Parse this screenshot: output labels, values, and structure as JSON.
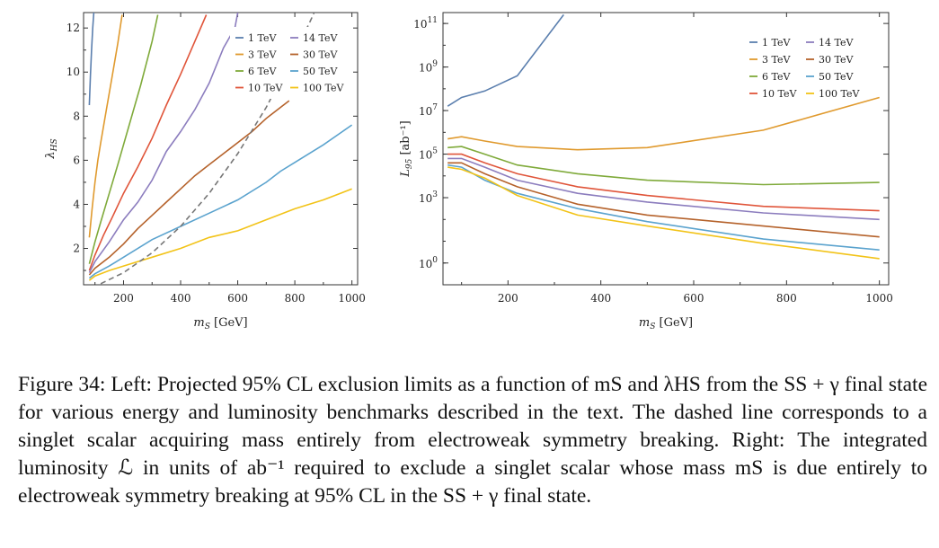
{
  "colors": {
    "1 TeV": "#5B7FAE",
    "3 TeV": "#E09A2E",
    "6 TeV": "#7FAA3A",
    "10 TeV": "#E0553A",
    "14 TeV": "#8C7DBE",
    "30 TeV": "#B5622B",
    "50 TeV": "#5BA3CE",
    "100 TeV": "#F2C318",
    "ewsb": "#777777"
  },
  "chart_data": [
    {
      "type": "line",
      "xlabel": "m_S [GeV]",
      "ylabel": "λ_HS",
      "xlim": [
        60,
        1020
      ],
      "ylim": [
        0.35,
        12.7
      ],
      "xticks": [
        200,
        400,
        600,
        800,
        1000
      ],
      "yticks": [
        2,
        4,
        6,
        8,
        10,
        12
      ],
      "grid": false,
      "legend_placement": "top-right",
      "legend": [
        "1 TeV",
        "3 TeV",
        "6 TeV",
        "10 TeV",
        "14 TeV",
        "30 TeV",
        "50 TeV",
        "100 TeV"
      ],
      "series": [
        {
          "name": "1 TeV",
          "x": [
            80,
            84,
            88,
            92,
            96
          ],
          "y": [
            8.5,
            9.8,
            11.0,
            12.0,
            12.7
          ]
        },
        {
          "name": "3 TeV",
          "x": [
            80,
            90,
            100,
            110,
            120,
            140,
            160,
            180,
            195
          ],
          "y": [
            2.5,
            3.8,
            5.0,
            6.0,
            6.8,
            8.3,
            9.8,
            11.3,
            12.6
          ]
        },
        {
          "name": "6 TeV",
          "x": [
            80,
            100,
            120,
            150,
            180,
            220,
            260,
            300,
            320
          ],
          "y": [
            1.3,
            2.3,
            3.2,
            4.5,
            5.8,
            7.6,
            9.4,
            11.4,
            12.6
          ]
        },
        {
          "name": "10 TeV",
          "x": [
            80,
            100,
            130,
            160,
            200,
            250,
            300,
            350,
            400,
            450,
            490
          ],
          "y": [
            1.0,
            1.7,
            2.6,
            3.4,
            4.5,
            5.7,
            7.0,
            8.5,
            9.9,
            11.4,
            12.6
          ]
        },
        {
          "name": "14 TeV",
          "x": [
            80,
            100,
            150,
            200,
            250,
            300,
            350,
            400,
            450,
            500,
            550,
            590,
            600
          ],
          "y": [
            0.9,
            1.4,
            2.3,
            3.3,
            4.1,
            5.1,
            6.4,
            7.3,
            8.3,
            9.5,
            11.1,
            12.0,
            12.7
          ]
        },
        {
          "name": "30 TeV",
          "x": [
            80,
            100,
            150,
            200,
            250,
            300,
            350,
            400,
            450,
            500,
            550,
            600,
            650,
            700,
            750,
            780
          ],
          "y": [
            0.8,
            1.1,
            1.6,
            2.2,
            2.9,
            3.5,
            4.1,
            4.7,
            5.3,
            5.8,
            6.3,
            6.8,
            7.3,
            7.9,
            8.4,
            8.7
          ]
        },
        {
          "name": "50 TeV",
          "x": [
            80,
            100,
            150,
            200,
            300,
            400,
            500,
            600,
            700,
            750,
            800,
            900,
            1000
          ],
          "y": [
            0.65,
            0.85,
            1.2,
            1.6,
            2.4,
            3.0,
            3.6,
            4.2,
            5.0,
            5.5,
            5.9,
            6.7,
            7.6
          ]
        },
        {
          "name": "100 TeV",
          "x": [
            80,
            100,
            150,
            200,
            300,
            400,
            500,
            600,
            700,
            800,
            900,
            1000
          ],
          "y": [
            0.55,
            0.75,
            1.0,
            1.2,
            1.6,
            2.0,
            2.5,
            2.8,
            3.3,
            3.8,
            4.2,
            4.7
          ]
        }
      ],
      "dashed_curve": {
        "x": [
          120,
          200,
          300,
          400,
          500,
          600,
          700,
          800,
          850,
          900
        ],
        "y": [
          0.4,
          0.9,
          1.8,
          3.0,
          4.5,
          6.3,
          8.4,
          10.9,
          12.2,
          13.6
        ]
      }
    },
    {
      "type": "line",
      "xlabel": "m_S [GeV]",
      "ylabel": "L_95 [ab⁻¹]",
      "yscale": "log",
      "xlim": [
        60,
        1020
      ],
      "ylim_log10": [
        -1.0,
        11.5
      ],
      "xticks": [
        200,
        400,
        600,
        800,
        1000
      ],
      "yticks_log10": [
        0,
        3,
        5,
        7,
        9,
        11
      ],
      "grid": false,
      "legend_placement": "top-right",
      "legend": [
        "1 TeV",
        "3 TeV",
        "6 TeV",
        "10 TeV",
        "14 TeV",
        "30 TeV",
        "50 TeV",
        "100 TeV"
      ],
      "series": [
        {
          "name": "1 TeV",
          "x": [
            70,
            100,
            150,
            220,
            320
          ],
          "log10_y": [
            7.2,
            7.6,
            7.9,
            8.6,
            11.4
          ]
        },
        {
          "name": "3 TeV",
          "x": [
            70,
            100,
            150,
            220,
            350,
            500,
            750,
            1000
          ],
          "log10_y": [
            5.7,
            5.8,
            5.6,
            5.35,
            5.2,
            5.3,
            6.1,
            7.6
          ]
        },
        {
          "name": "6 TeV",
          "x": [
            70,
            100,
            150,
            220,
            350,
            500,
            750,
            1000
          ],
          "log10_y": [
            5.3,
            5.35,
            5.0,
            4.5,
            4.1,
            3.8,
            3.6,
            3.7
          ]
        },
        {
          "name": "10 TeV",
          "x": [
            70,
            100,
            150,
            220,
            350,
            500,
            750,
            1000
          ],
          "log10_y": [
            5.0,
            5.0,
            4.6,
            4.1,
            3.5,
            3.1,
            2.6,
            2.4
          ]
        },
        {
          "name": "14 TeV",
          "x": [
            70,
            100,
            150,
            220,
            350,
            500,
            750,
            1000
          ],
          "log10_y": [
            4.8,
            4.8,
            4.4,
            3.8,
            3.2,
            2.8,
            2.3,
            2.0
          ]
        },
        {
          "name": "30 TeV",
          "x": [
            70,
            100,
            150,
            220,
            350,
            500,
            750,
            1000
          ],
          "log10_y": [
            4.6,
            4.6,
            4.1,
            3.5,
            2.7,
            2.2,
            1.7,
            1.2
          ]
        },
        {
          "name": "50 TeV",
          "x": [
            70,
            100,
            150,
            220,
            350,
            500,
            750,
            1000
          ],
          "log10_y": [
            4.5,
            4.4,
            3.8,
            3.2,
            2.5,
            1.9,
            1.1,
            0.6
          ]
        },
        {
          "name": "100 TeV",
          "x": [
            70,
            100,
            150,
            220,
            350,
            500,
            750,
            1000
          ],
          "log10_y": [
            4.4,
            4.3,
            3.9,
            3.1,
            2.2,
            1.7,
            0.9,
            0.2
          ]
        }
      ]
    }
  ],
  "caption": {
    "label": "Figure 34:",
    "text": " Left: Projected 95% CL exclusion limits as a function of mS and λHS from the SS + γ final state for various energy and luminosity benchmarks described in the text. The dashed line corresponds to a singlet scalar acquiring mass entirely from electroweak symmetry breaking. Right: The integrated luminosity ℒ in units of ab⁻¹ required to exclude a singlet scalar whose mass mS is due entirely to electroweak symmetry breaking at 95% CL in the SS + γ final state."
  }
}
